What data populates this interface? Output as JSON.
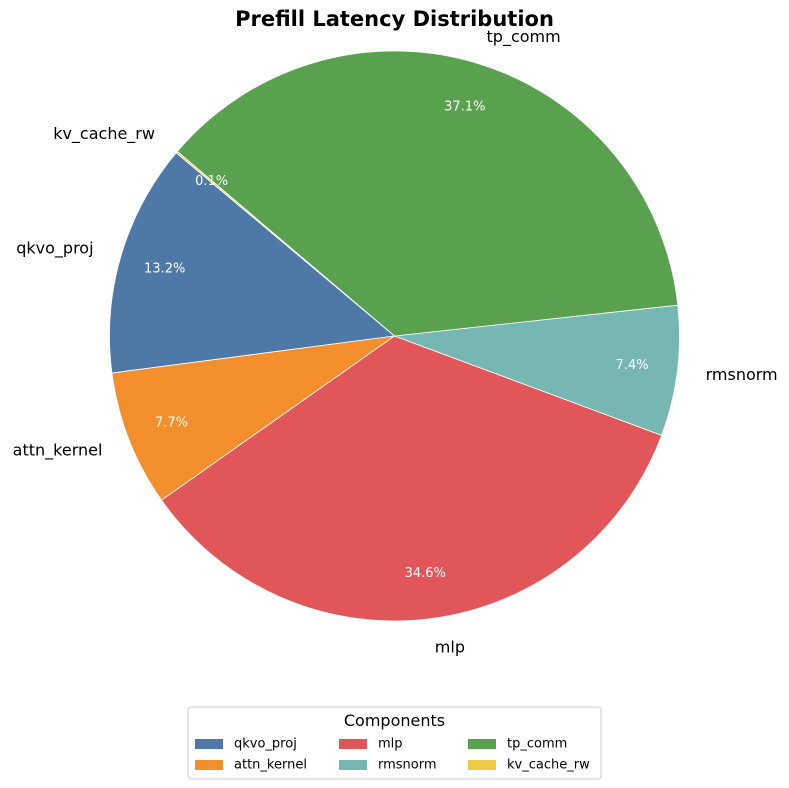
{
  "chart_data": {
    "type": "pie",
    "title": "Prefill Latency Distribution",
    "categories": [
      "qkvo_proj",
      "attn_kernel",
      "mlp",
      "rmsnorm",
      "tp_comm",
      "kv_cache_rw"
    ],
    "values": [
      13.2,
      7.7,
      34.6,
      7.4,
      37.1,
      0.1
    ],
    "value_labels": [
      "13.2%",
      "7.7%",
      "34.6%",
      "7.4%",
      "37.1%",
      "0.1%"
    ],
    "colors": [
      "#4e79a7",
      "#f28e2b",
      "#e15759",
      "#76b7b2",
      "#59a14f",
      "#edc948"
    ],
    "start_angle_deg": 140,
    "direction": "counterclockwise",
    "legend": {
      "title": "Components",
      "placement": "bottom-center",
      "columns": 3
    }
  }
}
